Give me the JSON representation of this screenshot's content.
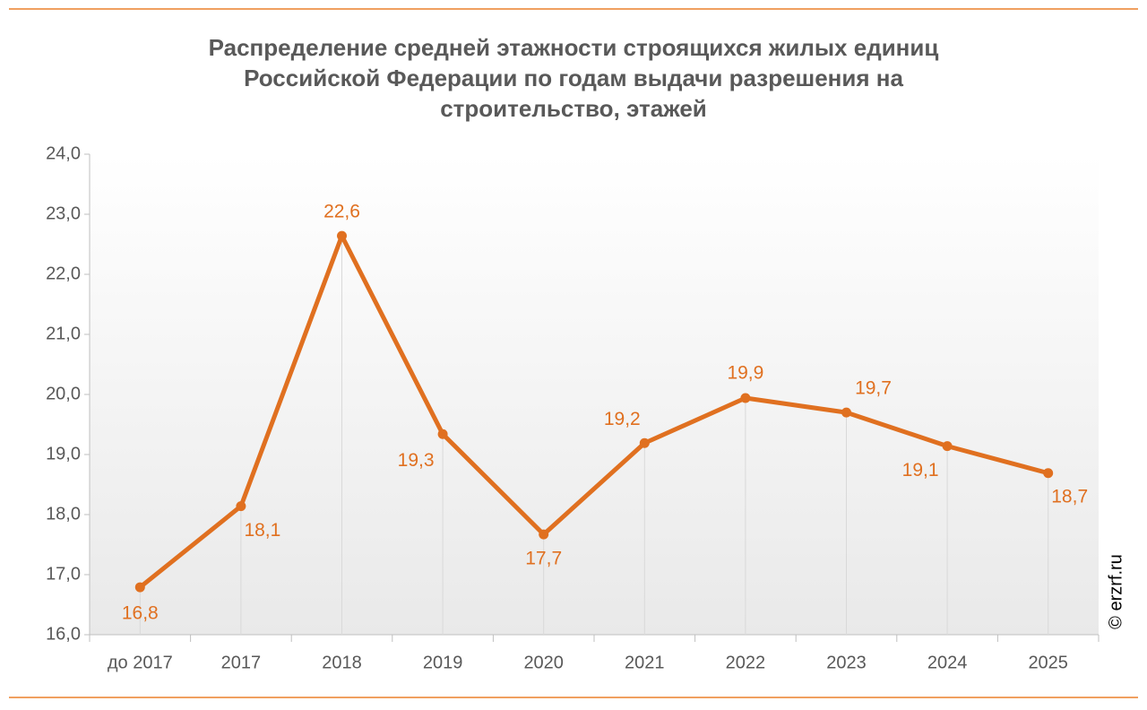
{
  "chart_data": {
    "type": "line",
    "title": "Распределение средней этажности строящихся жилых единиц Российской Федерации по годам выдачи разрешения на строительство, этажей",
    "categories": [
      "до 2017",
      "2017",
      "2018",
      "2019",
      "2020",
      "2021",
      "2022",
      "2023",
      "2024",
      "2025"
    ],
    "values": [
      16.79,
      18.14,
      22.64,
      19.34,
      17.67,
      19.19,
      19.94,
      19.7,
      19.14,
      18.69
    ],
    "value_labels": [
      "16,8",
      "18,1",
      "22,6",
      "19,3",
      "17,7",
      "19,2",
      "19,9",
      "19,7",
      "19,1",
      "18,7"
    ],
    "color": "#e07020",
    "ylim": [
      16,
      24
    ],
    "yticks": [
      {
        "value": 16,
        "label": "16,0"
      },
      {
        "value": 17,
        "label": "17,0"
      },
      {
        "value": 18,
        "label": "18,0"
      },
      {
        "value": 19,
        "label": "19,0"
      },
      {
        "value": 20,
        "label": "20,0"
      },
      {
        "value": 21,
        "label": "21,0"
      },
      {
        "value": 22,
        "label": "22,0"
      },
      {
        "value": 23,
        "label": "23,0"
      },
      {
        "value": 24,
        "label": "24,0"
      }
    ],
    "watermark": "© erzrf.ru"
  }
}
